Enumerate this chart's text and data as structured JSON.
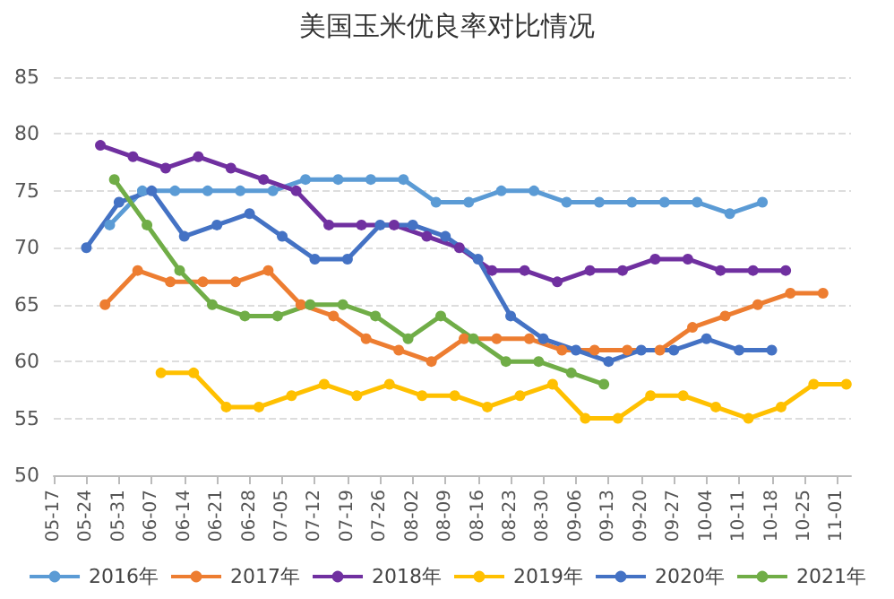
{
  "chart_data": {
    "type": "line",
    "title": "美国玉米优良率对比情况",
    "xlim": [
      "--05-17",
      "--11-04"
    ],
    "xticks": [
      {
        "value": "--05-17",
        "label": "05-17"
      },
      {
        "value": "--05-24",
        "label": "05-24"
      },
      {
        "value": "--05-31",
        "label": "05-31"
      },
      {
        "value": "--06-07",
        "label": "06-07"
      },
      {
        "value": "--06-14",
        "label": "06-14"
      },
      {
        "value": "--06-21",
        "label": "06-21"
      },
      {
        "value": "--06-28",
        "label": "06-28"
      },
      {
        "value": "--07-05",
        "label": "07-05"
      },
      {
        "value": "--07-12",
        "label": "07-12"
      },
      {
        "value": "--07-19",
        "label": "07-19"
      },
      {
        "value": "--07-26",
        "label": "07-26"
      },
      {
        "value": "--08-02",
        "label": "08-02"
      },
      {
        "value": "--08-09",
        "label": "08-09"
      },
      {
        "value": "--08-16",
        "label": "08-16"
      },
      {
        "value": "--08-23",
        "label": "08-23"
      },
      {
        "value": "--08-30",
        "label": "08-30"
      },
      {
        "value": "--09-06",
        "label": "09-06"
      },
      {
        "value": "--09-13",
        "label": "09-13"
      },
      {
        "value": "--09-20",
        "label": "09-20"
      },
      {
        "value": "--09-27",
        "label": "09-27"
      },
      {
        "value": "--10-04",
        "label": "10-04"
      },
      {
        "value": "--10-11",
        "label": "10-11"
      },
      {
        "value": "--10-18",
        "label": "10-18"
      },
      {
        "value": "--10-25",
        "label": "10-25"
      },
      {
        "value": "--11-01",
        "label": "11-01"
      }
    ],
    "ylim": [
      50,
      85
    ],
    "yticks": [
      50,
      55,
      60,
      65,
      70,
      75,
      80,
      85
    ],
    "grid": "y",
    "legend": "bottom",
    "marker": "circle",
    "line_style": "solid",
    "series": [
      {
        "name": "2016年",
        "color": "#5b9bd5",
        "x": [
          "--05-29",
          "--06-05",
          "--06-12",
          "--06-19",
          "--06-26",
          "--07-03",
          "--07-10",
          "--07-17",
          "--07-24",
          "--07-31",
          "--08-07",
          "--08-14",
          "--08-21",
          "--08-28",
          "--09-04",
          "--09-11",
          "--09-18",
          "--09-25",
          "--10-02",
          "--10-09",
          "--10-16"
        ],
        "values": [
          72,
          75,
          75,
          75,
          75,
          75,
          76,
          76,
          76,
          76,
          74,
          74,
          75,
          75,
          74,
          74,
          74,
          74,
          74,
          73,
          74
        ]
      },
      {
        "name": "2017年",
        "color": "#ed7d31",
        "x": [
          "--05-28",
          "--06-04",
          "--06-11",
          "--06-18",
          "--06-25",
          "--07-02",
          "--07-09",
          "--07-16",
          "--07-23",
          "--07-30",
          "--08-06",
          "--08-13",
          "--08-20",
          "--08-27",
          "--09-03",
          "--09-10",
          "--09-17",
          "--09-24",
          "--10-01",
          "--10-08",
          "--10-15",
          "--10-22",
          "--10-29"
        ],
        "values": [
          65,
          68,
          67,
          67,
          67,
          68,
          65,
          64,
          62,
          61,
          60,
          62,
          62,
          62,
          61,
          61,
          61,
          61,
          63,
          64,
          65,
          66,
          66
        ]
      },
      {
        "name": "2018年",
        "color": "#7030a0",
        "x": [
          "--05-27",
          "--06-03",
          "--06-10",
          "--06-17",
          "--06-24",
          "--07-01",
          "--07-08",
          "--07-15",
          "--07-22",
          "--07-29",
          "--08-05",
          "--08-12",
          "--08-19",
          "--08-26",
          "--09-02",
          "--09-09",
          "--09-16",
          "--09-23",
          "--09-30",
          "--10-07",
          "--10-14",
          "--10-21"
        ],
        "values": [
          79,
          78,
          77,
          78,
          77,
          76,
          75,
          72,
          72,
          72,
          71,
          70,
          68,
          68,
          67,
          68,
          68,
          69,
          69,
          68,
          68,
          68
        ]
      },
      {
        "name": "2019年",
        "color": "#ffc000",
        "x": [
          "--06-09",
          "--06-16",
          "--06-23",
          "--06-30",
          "--07-07",
          "--07-14",
          "--07-21",
          "--07-28",
          "--08-04",
          "--08-11",
          "--08-18",
          "--08-25",
          "--09-01",
          "--09-08",
          "--09-15",
          "--09-22",
          "--09-29",
          "--10-06",
          "--10-13",
          "--10-20",
          "--10-27",
          "--11-03"
        ],
        "values": [
          59,
          59,
          56,
          56,
          57,
          58,
          57,
          58,
          57,
          57,
          56,
          57,
          58,
          55,
          55,
          57,
          57,
          56,
          55,
          56,
          58,
          58
        ]
      },
      {
        "name": "2020年",
        "color": "#4472c4",
        "x": [
          "--05-24",
          "--05-31",
          "--06-07",
          "--06-14",
          "--06-21",
          "--06-28",
          "--07-05",
          "--07-12",
          "--07-19",
          "--07-26",
          "--08-02",
          "--08-09",
          "--08-16",
          "--08-23",
          "--08-30",
          "--09-06",
          "--09-13",
          "--09-20",
          "--09-27",
          "--10-04",
          "--10-11",
          "--10-18"
        ],
        "values": [
          70,
          74,
          75,
          71,
          72,
          73,
          71,
          69,
          69,
          72,
          72,
          71,
          69,
          64,
          62,
          61,
          60,
          61,
          61,
          62,
          61,
          61
        ]
      },
      {
        "name": "2021年",
        "color": "#70ad47",
        "x": [
          "--05-30",
          "--06-06",
          "--06-13",
          "--06-20",
          "--06-27",
          "--07-04",
          "--07-11",
          "--07-18",
          "--07-25",
          "--08-01",
          "--08-08",
          "--08-15",
          "--08-22",
          "--08-29",
          "--09-05",
          "--09-12"
        ],
        "values": [
          76,
          72,
          68,
          65,
          64,
          64,
          65,
          65,
          64,
          62,
          64,
          62,
          60,
          60,
          59,
          58
        ]
      }
    ]
  }
}
